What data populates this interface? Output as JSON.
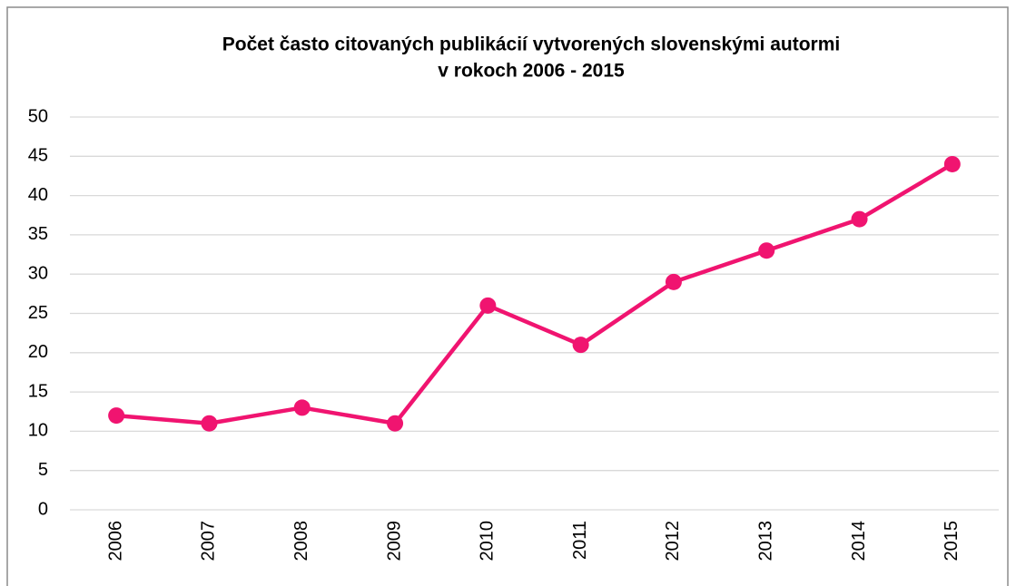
{
  "chart_data": {
    "type": "line",
    "title": [
      "Počet často citovaných publikácií vytvorených slovenskými autormi",
      "v rokoch 2006 - 2015"
    ],
    "categories": [
      "2006",
      "2007",
      "2008",
      "2009",
      "2010",
      "2011",
      "2012",
      "2013",
      "2014",
      "2015"
    ],
    "values": [
      12,
      11,
      13,
      11,
      26,
      21,
      29,
      33,
      37,
      44
    ],
    "color": "#f01470",
    "ylim": [
      0,
      50
    ],
    "yticks": [
      0,
      5,
      10,
      15,
      20,
      25,
      30,
      35,
      40,
      45,
      50
    ],
    "grid": true
  }
}
